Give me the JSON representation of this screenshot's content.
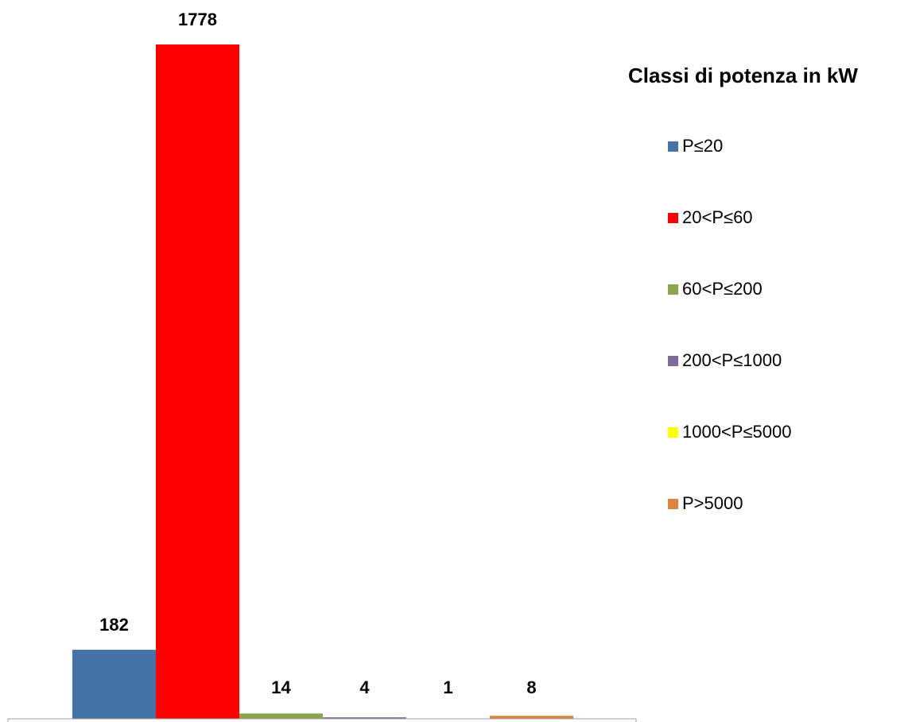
{
  "chart_data": {
    "type": "bar",
    "legend_title": "Classi di potenza in kW",
    "categories": [
      null
    ],
    "series": [
      {
        "name": "P≤20",
        "color": "#4572a7",
        "values": [
          182
        ]
      },
      {
        "name": "20<P≤60",
        "color": "#ff0000",
        "values": [
          1778
        ]
      },
      {
        "name": "60<P≤200",
        "color": "#89a54e",
        "values": [
          14
        ]
      },
      {
        "name": "200<P≤1000",
        "color": "#80699b",
        "values": [
          4
        ]
      },
      {
        "name": "1000<P≤5000",
        "color": "#ffff00",
        "values": [
          1
        ]
      },
      {
        "name": "P>5000",
        "color": "#db843d",
        "values": [
          8
        ]
      }
    ],
    "legend": "right"
  }
}
